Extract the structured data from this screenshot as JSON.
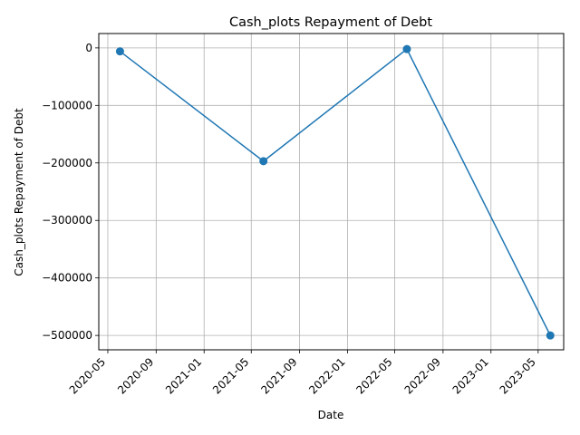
{
  "chart_data": {
    "type": "line",
    "title": "Cash_plots Repayment of Debt",
    "xlabel": "Date",
    "ylabel": "Cash_plots Repayment of Debt",
    "x_scale": "date",
    "xlim": [
      "2020-04-08",
      "2023-07-05"
    ],
    "ylim": [
      -525000,
      25000
    ],
    "x_ticks": [
      "2020-05-01",
      "2020-09-01",
      "2021-01-01",
      "2021-05-01",
      "2021-09-01",
      "2022-01-01",
      "2022-05-01",
      "2022-09-01",
      "2023-01-01",
      "2023-05-01"
    ],
    "x_tick_labels": [
      "2020-05",
      "2020-09",
      "2021-01",
      "2021-05",
      "2021-09",
      "2022-01",
      "2022-05",
      "2022-09",
      "2023-01",
      "2023-05"
    ],
    "y_ticks": [
      0,
      -100000,
      -200000,
      -300000,
      -400000,
      -500000
    ],
    "y_tick_labels": [
      "0",
      "−100000",
      "−200000",
      "−300000",
      "−400000",
      "−500000"
    ],
    "grid": true,
    "marker": "circle",
    "color": "#1f77b4",
    "series": [
      {
        "x": [
          "2020-06-01",
          "2021-06-01",
          "2022-06-01",
          "2023-06-01"
        ],
        "values": [
          -6000,
          -197000,
          -2000,
          -500000
        ]
      }
    ]
  }
}
